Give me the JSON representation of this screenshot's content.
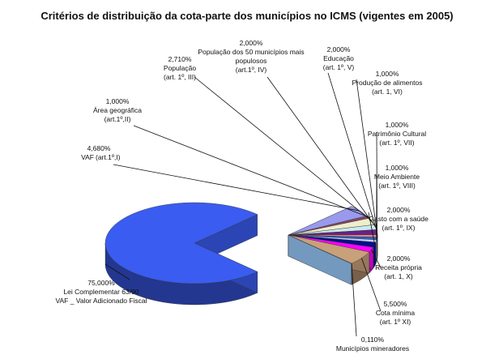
{
  "chart_data": {
    "type": "pie",
    "title": "Critérios de distribuição da cota-parte dos municípios no ICMS (vigentes em 2005)",
    "categories": [
      "Lei Complementar 63/90",
      "VAF",
      "Área geográfica",
      "População",
      "População dos 50 municípios mais populosos",
      "Educação",
      "Produção de alimentos",
      "Patrimônio Cultural",
      "Meio Ambiente",
      "Gasto com a saúde",
      "Receita própria",
      "Cota mínima",
      "Municípios mineradores"
    ],
    "notes": [
      "VAF _ Valor Adicionado Fiscal",
      "(art.1º,I)",
      "(art.1º,II)",
      "(art. 1º, III)",
      "(art.1º, IV)",
      "(art. 1º, V)",
      "(art. 1, VI)",
      "(art. 1º, VII)",
      "(art. 1º, VIII)",
      "(art. 1º, IX)",
      "(art. 1, X)",
      "(art. 1º XI)",
      null
    ],
    "values": [
      75,
      4.68,
      1,
      2.71,
      2,
      2,
      1,
      1,
      1,
      2,
      2,
      5.5,
      0.11
    ],
    "value_labels": [
      "75,000%",
      "4,680%",
      "1,000%",
      "2,710%",
      "2,000%",
      "2,000%",
      "1,000%",
      "1,000%",
      "1,000%",
      "2,000%",
      "2,000%",
      "5,500%",
      "0,110%"
    ],
    "colors": [
      "#3a5cf0",
      "#9999ee",
      "#884466",
      "#eeeecc",
      "#cce8ee",
      "#662288",
      "#ee8080",
      "#2266cc",
      "#ccccff",
      "#001188",
      "#ff00ff",
      "#c8a07a",
      "#99ccff"
    ]
  }
}
